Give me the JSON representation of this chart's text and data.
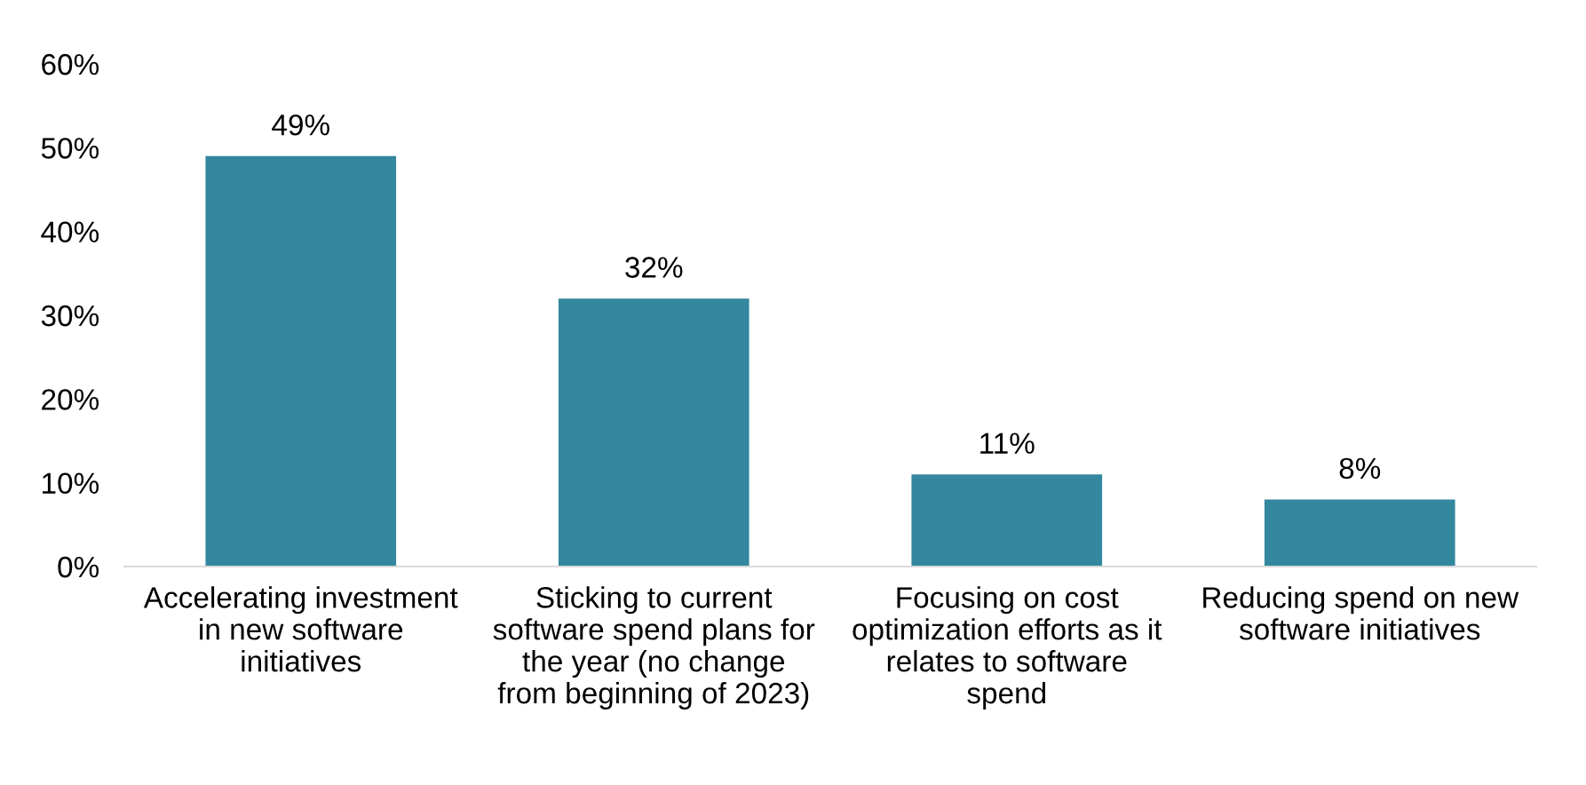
{
  "chart_data": {
    "type": "bar",
    "categories": [
      "Accelerating investment\nin new software\ninitiatives",
      "Sticking to current\nsoftware spend plans for\nthe year (no change\nfrom beginning of 2023)",
      "Focusing on cost\noptimization efforts as it\nrelates to software\nspend",
      "Reducing spend on new\nsoftware initiatives"
    ],
    "values": [
      49,
      32,
      11,
      8
    ],
    "value_labels": [
      "49%",
      "32%",
      "11%",
      "8%"
    ],
    "color": "#33879e",
    "ylim": [
      0,
      60
    ],
    "yticks": [
      {
        "value": 0,
        "label": "0%"
      },
      {
        "value": 10,
        "label": "10%"
      },
      {
        "value": 20,
        "label": "20%"
      },
      {
        "value": 30,
        "label": "30%"
      },
      {
        "value": 40,
        "label": "40%"
      },
      {
        "value": 50,
        "label": "50%"
      },
      {
        "value": 60,
        "label": "60%"
      }
    ],
    "grid": false,
    "legend": false
  }
}
